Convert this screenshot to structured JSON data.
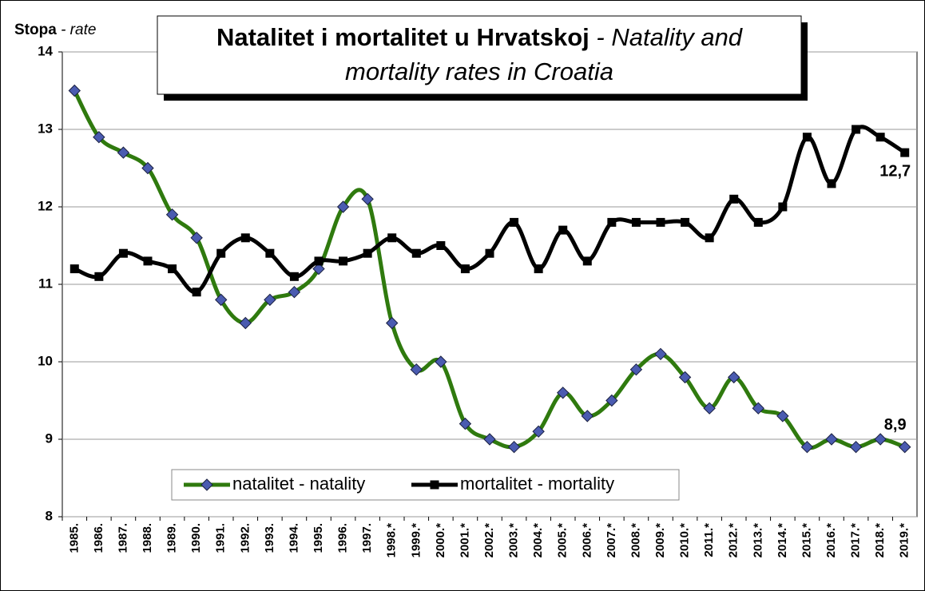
{
  "chart_data": {
    "type": "line",
    "title": "Natalitet i mortalitet u Hrvatskoj",
    "subtitle": [
      "- Natality and",
      "mortality rates in Croatia"
    ],
    "y_label": [
      "Stopa",
      "- rate"
    ],
    "categories": [
      "1985.",
      "1986.",
      "1987.",
      "1988.",
      "1989.",
      "1990.",
      "1991.",
      "1992.",
      "1993.",
      "1994.",
      "1995.",
      "1996.",
      "1997.",
      "1998.*",
      "1999.*",
      "2000.*",
      "2001.*",
      "2002.*",
      "2003.*",
      "2004.*",
      "2005.*",
      "2006.*",
      "2007.*",
      "2008.*",
      "2009.*",
      "2010.*",
      "2011.*",
      "2012.*",
      "2013.*",
      "2014.*",
      "2015.*",
      "2016.*",
      "2017.*",
      "2018.*",
      "2019.*"
    ],
    "series": [
      {
        "name": "natalitet - natality",
        "color": "#2f7a0e",
        "marker": "diamond",
        "marker_color": "#4a5bb0",
        "values": [
          13.5,
          12.9,
          12.7,
          12.5,
          11.9,
          11.6,
          10.8,
          10.5,
          10.8,
          10.9,
          11.2,
          12.0,
          12.1,
          10.5,
          9.9,
          10.0,
          9.2,
          9.0,
          8.9,
          9.1,
          9.6,
          9.3,
          9.5,
          9.9,
          10.1,
          9.8,
          9.4,
          9.8,
          9.4,
          9.3,
          8.9,
          9.0,
          8.9,
          9.0,
          8.9
        ],
        "value_labels": [
          null,
          null,
          null,
          null,
          null,
          null,
          null,
          null,
          null,
          null,
          null,
          null,
          null,
          null,
          null,
          null,
          null,
          null,
          null,
          null,
          null,
          null,
          null,
          null,
          null,
          null,
          null,
          null,
          null,
          null,
          null,
          null,
          null,
          null,
          "8,9"
        ]
      },
      {
        "name": "mortalitet - mortality",
        "color": "#000000",
        "marker": "square",
        "marker_color": "#000000",
        "values": [
          11.2,
          11.1,
          11.4,
          11.3,
          11.2,
          10.9,
          11.4,
          11.6,
          11.4,
          11.1,
          11.3,
          11.3,
          11.4,
          11.6,
          11.4,
          11.5,
          11.2,
          11.4,
          11.8,
          11.2,
          11.7,
          11.3,
          11.8,
          11.8,
          11.8,
          11.8,
          11.6,
          12.1,
          11.8,
          12.0,
          12.9,
          12.3,
          13.0,
          12.9,
          12.7
        ],
        "value_labels": [
          null,
          null,
          null,
          null,
          null,
          null,
          null,
          null,
          null,
          null,
          null,
          null,
          null,
          null,
          null,
          null,
          null,
          null,
          null,
          null,
          null,
          null,
          null,
          null,
          null,
          null,
          null,
          null,
          null,
          null,
          null,
          null,
          null,
          null,
          "12,7"
        ]
      }
    ],
    "ylim": [
      8,
      14
    ],
    "yticks": [
      8,
      9,
      10,
      11,
      12,
      13,
      14
    ],
    "grid": true,
    "smooth": true,
    "legend": "bottom-left"
  }
}
